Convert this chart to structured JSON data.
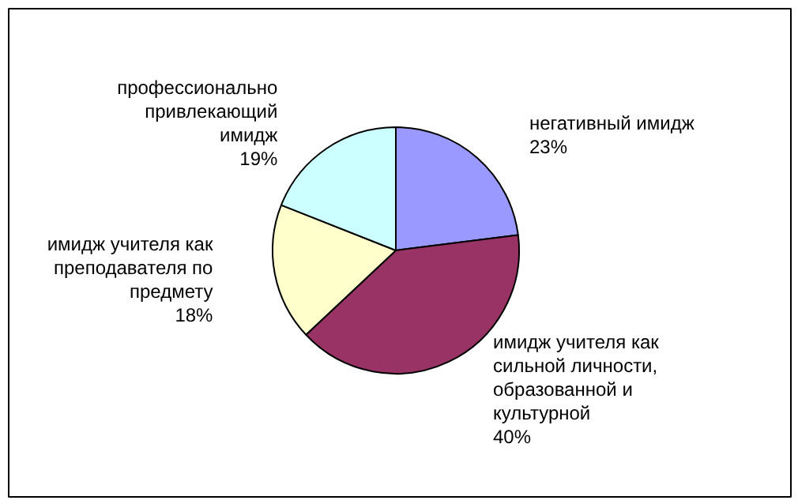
{
  "chart_data": {
    "type": "pie",
    "categories": [
      "негативный имидж",
      "имидж учителя как сильной личности, образованной и культурной",
      "имидж учителя как преподавателя по предмету",
      "профессионально привлекающий имидж"
    ],
    "values": [
      23,
      40,
      18,
      19
    ],
    "colors": [
      "#9999ff",
      "#993366",
      "#ffffcc",
      "#ccffff"
    ],
    "value_labels": [
      "23%",
      "40%",
      "18%",
      "19%"
    ]
  }
}
